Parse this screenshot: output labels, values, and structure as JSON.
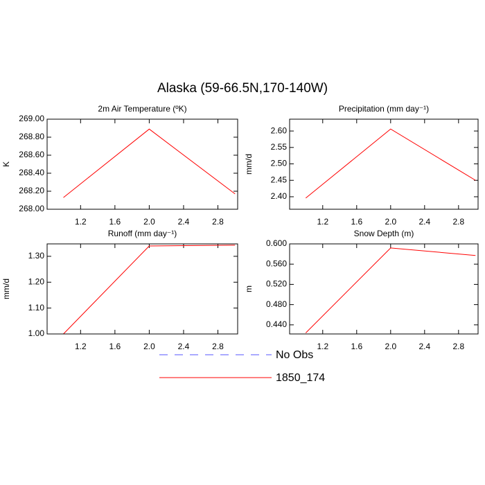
{
  "title": "Alaska (59-66.5N,170-140W)",
  "legend": [
    {
      "name": "No Obs",
      "color": "#5555ff",
      "dashed": true
    },
    {
      "name": "1850_174",
      "color": "#ff0000",
      "dashed": false
    }
  ],
  "chart_data": [
    {
      "type": "line",
      "title": "2m Air Temperature (ºK)",
      "y_label": "K",
      "color": "#ff0000",
      "x": [
        1,
        2,
        3
      ],
      "values": [
        268.13,
        268.89,
        268.17
      ],
      "xlim": [
        0.81,
        3.03
      ],
      "xticks": [
        1.2,
        1.6,
        {
          "value": 2,
          "label": "2.0"
        },
        2.4,
        2.8
      ],
      "ylim": [
        268.0,
        269.0
      ],
      "yticks": [
        {
          "value": 268.0,
          "label": "268.00"
        },
        {
          "value": 268.2,
          "label": "268.20"
        },
        {
          "value": 268.4,
          "label": "268.40"
        },
        {
          "value": 268.6,
          "label": "268.60"
        },
        {
          "value": 268.8,
          "label": "268.80"
        },
        {
          "value": 269.0,
          "label": "269.00"
        }
      ]
    },
    {
      "type": "line",
      "title": "Precipitation (mm day⁻¹)",
      "y_label": "mm/d",
      "color": "#ff0000",
      "x": [
        1,
        2,
        3
      ],
      "values": [
        2.396,
        2.606,
        2.45
      ],
      "xlim": [
        0.81,
        3.03
      ],
      "xticks": [
        1.2,
        1.6,
        {
          "value": 2,
          "label": "2.0"
        },
        2.4,
        2.8
      ],
      "ylim": [
        2.362,
        2.636
      ],
      "yticks": [
        {
          "value": 2.4,
          "label": "2.40"
        },
        2.45,
        {
          "value": 2.5,
          "label": "2.50"
        },
        2.55,
        {
          "value": 2.6,
          "label": "2.60"
        }
      ]
    },
    {
      "type": "line",
      "title": "Runoff (mm day⁻¹)",
      "y_label": "mm/d",
      "color": "#ff0000",
      "x": [
        1,
        2,
        3
      ],
      "values": [
        1.0,
        1.34,
        1.343
      ],
      "xlim": [
        0.81,
        3.03
      ],
      "xticks": [
        1.2,
        1.6,
        {
          "value": 2,
          "label": "2.0"
        },
        2.4,
        2.8
      ],
      "ylim": [
        1.0,
        1.348
      ],
      "yticks": [
        {
          "value": 1.0,
          "label": "1.00"
        },
        {
          "value": 1.1,
          "label": "1.10"
        },
        {
          "value": 1.2,
          "label": "1.20"
        },
        {
          "value": 1.3,
          "label": "1.30"
        }
      ]
    },
    {
      "type": "line",
      "title": "Snow Depth (m)",
      "y_label": "m",
      "color": "#ff0000",
      "x": [
        1,
        2,
        3
      ],
      "values": [
        0.424,
        0.592,
        0.577
      ],
      "xlim": [
        0.81,
        3.03
      ],
      "xticks": [
        1.2,
        1.6,
        {
          "value": 2,
          "label": "2.0"
        },
        2.4,
        2.8
      ],
      "ylim": [
        0.422,
        0.6
      ],
      "yticks": [
        {
          "value": 0.44,
          "label": "0.440"
        },
        {
          "value": 0.48,
          "label": "0.480"
        },
        {
          "value": 0.52,
          "label": "0.520"
        },
        {
          "value": 0.56,
          "label": "0.560"
        },
        {
          "value": 0.6,
          "label": "0.600"
        }
      ]
    }
  ]
}
